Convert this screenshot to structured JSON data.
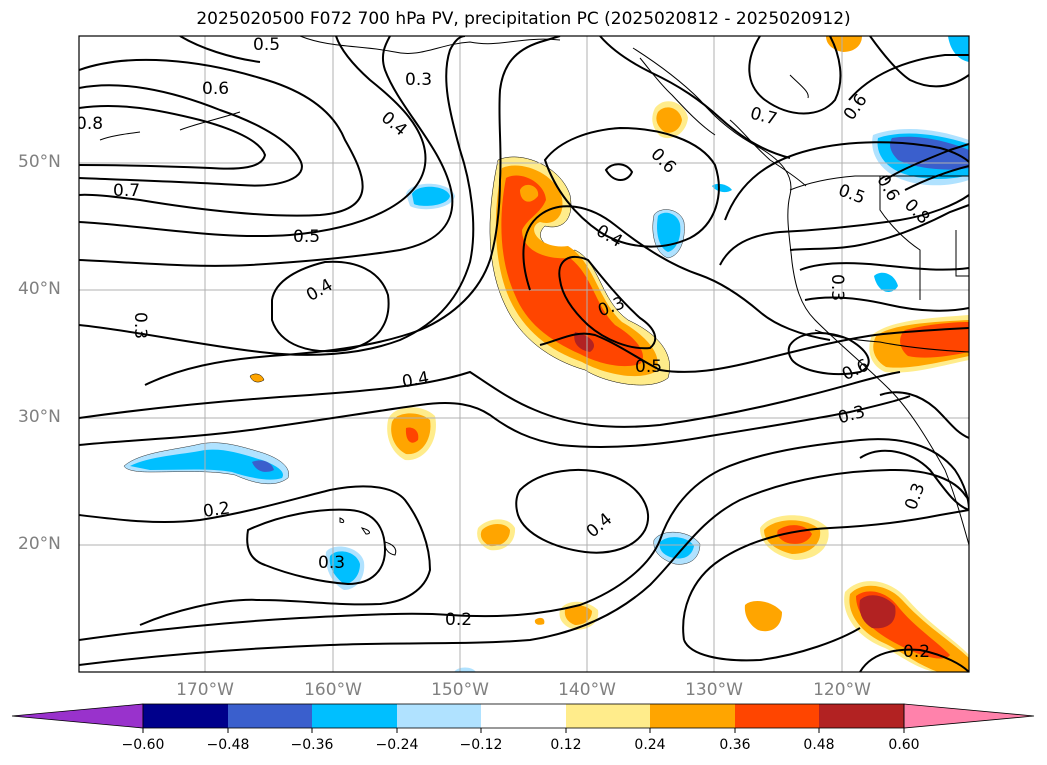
{
  "title": "2025020500 F072 700 hPa PV, precipitation PC (2025020812 - 2025020912)",
  "map": {
    "lat_labels": [
      "50°N",
      "40°N",
      "30°N",
      "20°N"
    ],
    "lon_labels": [
      "170°W",
      "160°W",
      "150°W",
      "140°W",
      "130°W",
      "120°W"
    ],
    "contour_labels": [
      "0.5",
      "0.3",
      "0.6",
      "0.8",
      "0.7",
      "0.4",
      "0.6",
      "0.5",
      "0.4",
      "0.3",
      "0.5",
      "0.4",
      "0.3",
      "0.7",
      "0.6",
      "0.5",
      "0.6",
      "0.8",
      "0.3",
      "0.6",
      "0.3",
      "0.3",
      "0.4",
      "0.4",
      "0.2",
      "0.3",
      "0.2",
      "0.2"
    ]
  },
  "colorbar": {
    "ticks": [
      "−0.60",
      "−0.48",
      "−0.36",
      "−0.24",
      "−0.12",
      "0.12",
      "0.24",
      "0.36",
      "0.48",
      "0.60"
    ],
    "colors": [
      "#9932cc",
      "#00008b",
      "#3a5fcd",
      "#00bfff",
      "#b0e2ff",
      "#ffffff",
      "#ffec8b",
      "#ffa500",
      "#ff4500",
      "#b22222",
      "#ff82ab"
    ]
  }
}
